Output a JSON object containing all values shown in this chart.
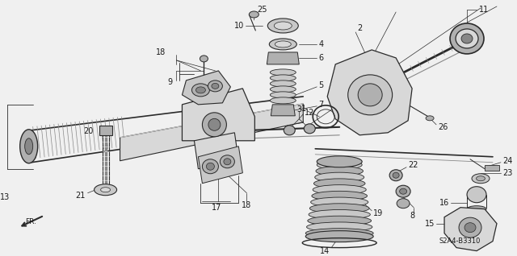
{
  "bg_color": "#f0f0f0",
  "diagram_code": "S2A4-B3310",
  "line_color": "#2a2a2a",
  "text_color": "#1a1a1a",
  "font_size": 7.0,
  "gray_dark": "#888888",
  "gray_mid": "#b0b0b0",
  "gray_light": "#d8d8d8",
  "gray_fill": "#c8c8c8",
  "white": "#f8f8f8"
}
